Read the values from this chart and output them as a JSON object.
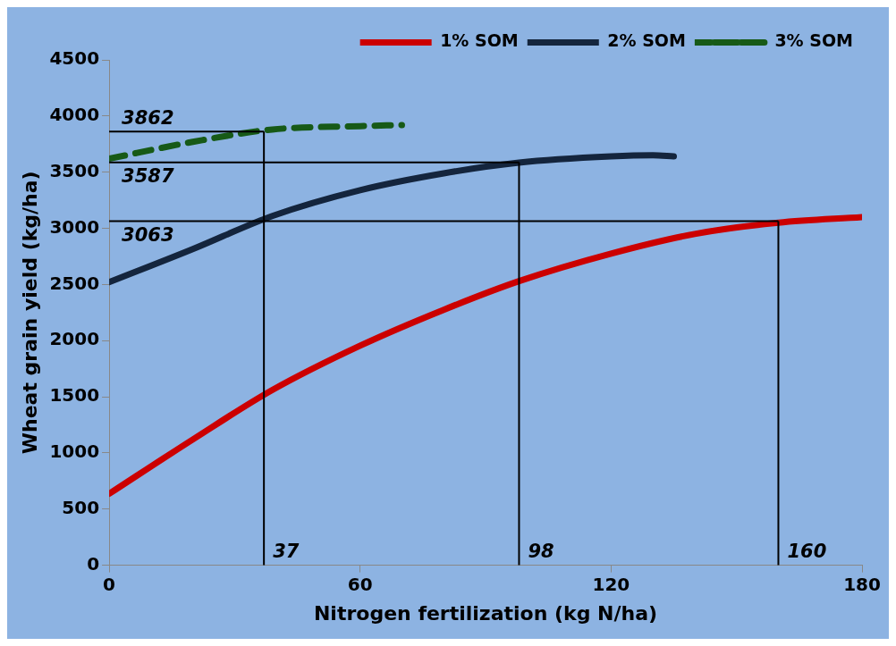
{
  "chart_data": {
    "type": "line",
    "xlabel": "Nitrogen fertilization (kg N/ha)",
    "ylabel": "Wheat grain yield (kg/ha)",
    "xlim": [
      0,
      180
    ],
    "xticks": [
      0,
      60,
      120,
      180
    ],
    "ylim": [
      0,
      4500
    ],
    "yticks": [
      0,
      500,
      1000,
      1500,
      2000,
      2500,
      3000,
      3500,
      4000,
      4500
    ],
    "grid": false,
    "legend": "top right",
    "marker": "none",
    "series": [
      {
        "name": "1% SOM",
        "color": "#cc0000",
        "line_style": "solid",
        "x": [
          0,
          20,
          39,
          60,
          80,
          98,
          120,
          140,
          160,
          180
        ],
        "values": [
          636,
          1120,
          1560,
          1955,
          2275,
          2530,
          2775,
          2950,
          3050,
          3100
        ]
      },
      {
        "name": "2% SOM",
        "color": "#14253d",
        "line_style": "solid",
        "x": [
          0,
          20,
          39,
          60,
          80,
          98,
          120,
          130,
          135
        ],
        "values": [
          2520,
          2815,
          3110,
          3340,
          3490,
          3585,
          3640,
          3650,
          3640
        ]
      },
      {
        "name": "3% SOM",
        "color": "#175a17",
        "line_style": "dashed",
        "x": [
          0,
          20,
          39,
          60,
          70
        ],
        "values": [
          3620,
          3770,
          3880,
          3910,
          3920
        ]
      }
    ],
    "ref_lines": [
      {
        "axis": "y",
        "value": 3862,
        "label": "3862",
        "color": "#000000"
      },
      {
        "axis": "y",
        "value": 3587,
        "label": "3587",
        "color": "#000000"
      },
      {
        "axis": "y",
        "value": 3063,
        "label": "3063",
        "color": "#000000"
      },
      {
        "axis": "x",
        "value": 37,
        "label": "37",
        "color": "#000000"
      },
      {
        "axis": "x",
        "value": 98,
        "label": "98",
        "color": "#000000"
      },
      {
        "axis": "x",
        "value": 160,
        "label": "160",
        "color": "#000000"
      }
    ]
  }
}
